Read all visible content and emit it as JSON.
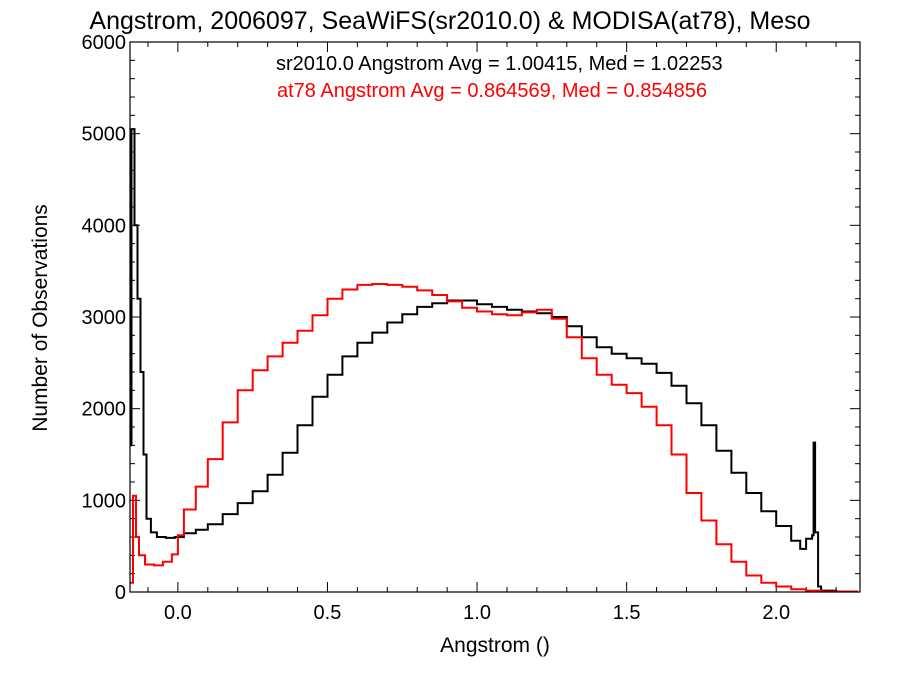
{
  "chart_data": {
    "type": "line",
    "title": "Angstrom, 2006097, SeaWiFS(sr2010.0) & MODISA(at78), Meso",
    "xlabel": "Angstrom ()",
    "ylabel": "Number of Observations",
    "xlim": [
      -0.16,
      2.28
    ],
    "ylim": [
      0,
      6000
    ],
    "x_ticks": [
      "0.0",
      "0.5",
      "1.0",
      "1.5",
      "2.0"
    ],
    "y_ticks": [
      "0",
      "1000",
      "2000",
      "3000",
      "4000",
      "5000",
      "6000"
    ],
    "grid": false,
    "annotations": [
      {
        "text": "sr2010.0 Angstrom Avg = 1.00415, Med = 1.02253",
        "color": "#000000"
      },
      {
        "text": "at78 Angstrom Avg = 0.864569, Med = 0.854856",
        "color": "#ff0000"
      }
    ],
    "series": [
      {
        "color": "#000000",
        "points": [
          [
            -0.16,
            1600
          ],
          [
            -0.155,
            5050
          ],
          [
            -0.145,
            4000
          ],
          [
            -0.135,
            3200
          ],
          [
            -0.125,
            2400
          ],
          [
            -0.115,
            1500
          ],
          [
            -0.105,
            800
          ],
          [
            -0.09,
            650
          ],
          [
            -0.07,
            600
          ],
          [
            -0.04,
            590
          ],
          [
            -0.01,
            600
          ],
          [
            0.02,
            640
          ],
          [
            0.06,
            680
          ],
          [
            0.1,
            740
          ],
          [
            0.15,
            850
          ],
          [
            0.2,
            970
          ],
          [
            0.25,
            1100
          ],
          [
            0.3,
            1280
          ],
          [
            0.35,
            1520
          ],
          [
            0.4,
            1820
          ],
          [
            0.45,
            2130
          ],
          [
            0.5,
            2370
          ],
          [
            0.55,
            2570
          ],
          [
            0.6,
            2720
          ],
          [
            0.65,
            2830
          ],
          [
            0.7,
            2940
          ],
          [
            0.75,
            3030
          ],
          [
            0.8,
            3110
          ],
          [
            0.85,
            3150
          ],
          [
            0.9,
            3180
          ],
          [
            0.95,
            3180
          ],
          [
            1.0,
            3140
          ],
          [
            1.05,
            3110
          ],
          [
            1.1,
            3080
          ],
          [
            1.15,
            3060
          ],
          [
            1.2,
            3040
          ],
          [
            1.25,
            3000
          ],
          [
            1.3,
            2900
          ],
          [
            1.35,
            2780
          ],
          [
            1.4,
            2670
          ],
          [
            1.45,
            2600
          ],
          [
            1.5,
            2550
          ],
          [
            1.55,
            2490
          ],
          [
            1.6,
            2390
          ],
          [
            1.65,
            2250
          ],
          [
            1.7,
            2060
          ],
          [
            1.75,
            1820
          ],
          [
            1.8,
            1540
          ],
          [
            1.85,
            1300
          ],
          [
            1.9,
            1080
          ],
          [
            1.95,
            880
          ],
          [
            2.0,
            720
          ],
          [
            2.05,
            560
          ],
          [
            2.08,
            470
          ],
          [
            2.1,
            580
          ],
          [
            2.12,
            620
          ],
          [
            2.125,
            1630
          ],
          [
            2.13,
            650
          ],
          [
            2.14,
            60
          ],
          [
            2.15,
            15
          ],
          [
            2.2,
            5
          ],
          [
            2.27,
            0
          ]
        ]
      },
      {
        "color": "#ff0000",
        "points": [
          [
            -0.16,
            100
          ],
          [
            -0.15,
            1050
          ],
          [
            -0.14,
            600
          ],
          [
            -0.13,
            400
          ],
          [
            -0.11,
            300
          ],
          [
            -0.08,
            290
          ],
          [
            -0.05,
            330
          ],
          [
            -0.02,
            410
          ],
          [
            0.0,
            620
          ],
          [
            0.02,
            900
          ],
          [
            0.06,
            1150
          ],
          [
            0.1,
            1450
          ],
          [
            0.15,
            1850
          ],
          [
            0.2,
            2200
          ],
          [
            0.25,
            2420
          ],
          [
            0.3,
            2570
          ],
          [
            0.35,
            2720
          ],
          [
            0.4,
            2850
          ],
          [
            0.45,
            3020
          ],
          [
            0.5,
            3200
          ],
          [
            0.55,
            3300
          ],
          [
            0.6,
            3350
          ],
          [
            0.65,
            3360
          ],
          [
            0.7,
            3350
          ],
          [
            0.75,
            3330
          ],
          [
            0.8,
            3290
          ],
          [
            0.85,
            3240
          ],
          [
            0.9,
            3170
          ],
          [
            0.95,
            3100
          ],
          [
            1.0,
            3060
          ],
          [
            1.05,
            3030
          ],
          [
            1.1,
            3020
          ],
          [
            1.15,
            3050
          ],
          [
            1.2,
            3080
          ],
          [
            1.25,
            2980
          ],
          [
            1.3,
            2780
          ],
          [
            1.35,
            2550
          ],
          [
            1.4,
            2370
          ],
          [
            1.45,
            2260
          ],
          [
            1.5,
            2170
          ],
          [
            1.55,
            2020
          ],
          [
            1.6,
            1820
          ],
          [
            1.65,
            1500
          ],
          [
            1.7,
            1080
          ],
          [
            1.75,
            780
          ],
          [
            1.8,
            520
          ],
          [
            1.85,
            330
          ],
          [
            1.9,
            180
          ],
          [
            1.95,
            100
          ],
          [
            2.0,
            60
          ],
          [
            2.05,
            30
          ],
          [
            2.1,
            15
          ],
          [
            2.15,
            5
          ],
          [
            2.27,
            0
          ]
        ]
      }
    ]
  }
}
